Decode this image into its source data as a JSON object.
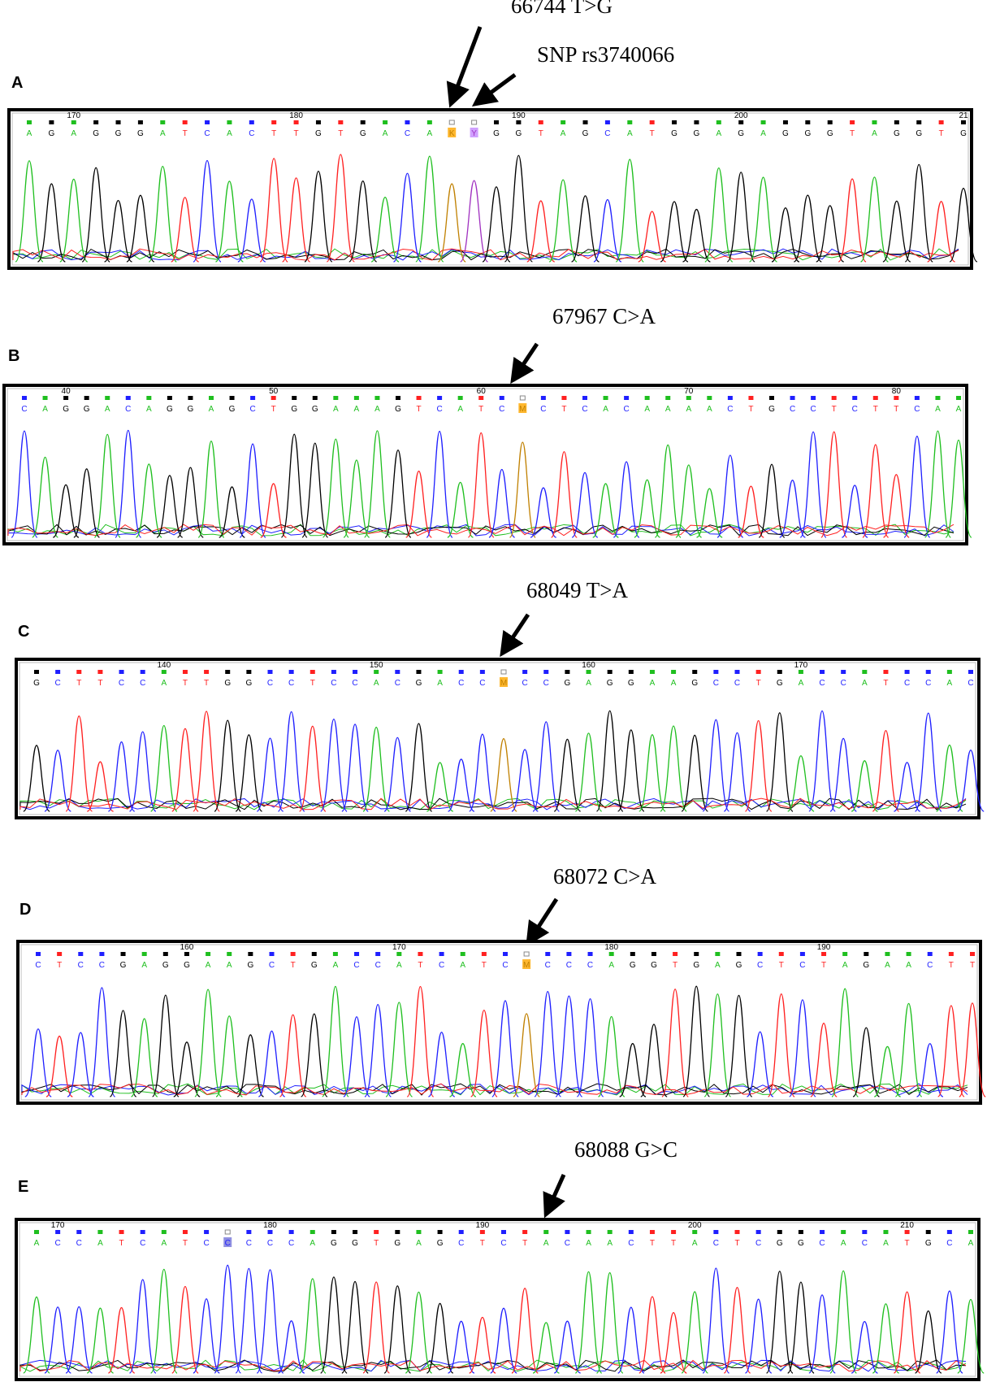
{
  "panels": [
    {
      "label": "A",
      "annotations": [
        "66744 T>G",
        "SNP rs3740066"
      ],
      "ticks": [
        "170",
        "180",
        "190",
        "200",
        "21"
      ],
      "bases": [
        "A",
        "G",
        "A",
        "G",
        "G",
        "G",
        "A",
        "T",
        "C",
        "A",
        "C",
        "T",
        "T",
        "G",
        "T",
        "G",
        "A",
        "C",
        "A",
        "K",
        "Y",
        "G",
        "G",
        "T",
        "A",
        "G",
        "C",
        "A",
        "T",
        "G",
        "G",
        "A",
        "G",
        "A",
        "G",
        "G",
        "G",
        "T",
        "A",
        "G",
        "G",
        "T",
        "G"
      ]
    },
    {
      "label": "B",
      "annotations": [
        "67967 C>A"
      ],
      "ticks": [
        "40",
        "50",
        "60",
        "70",
        "80"
      ],
      "bases": [
        "C",
        "A",
        "G",
        "G",
        "A",
        "C",
        "A",
        "G",
        "G",
        "A",
        "G",
        "C",
        "T",
        "G",
        "G",
        "A",
        "A",
        "A",
        "G",
        "T",
        "C",
        "A",
        "T",
        "C",
        "M",
        "C",
        "T",
        "C",
        "A",
        "C",
        "A",
        "A",
        "A",
        "A",
        "C",
        "T",
        "G",
        "C",
        "C",
        "T",
        "C",
        "T",
        "T",
        "C",
        "A",
        "A"
      ]
    },
    {
      "label": "C",
      "annotations": [
        "68049 T>A"
      ],
      "ticks": [
        "140",
        "150",
        "160",
        "170"
      ],
      "bases": [
        "G",
        "C",
        "T",
        "T",
        "C",
        "C",
        "A",
        "T",
        "T",
        "G",
        "G",
        "C",
        "C",
        "T",
        "C",
        "C",
        "A",
        "C",
        "G",
        "A",
        "C",
        "C",
        "M",
        "C",
        "C",
        "G",
        "A",
        "G",
        "G",
        "A",
        "A",
        "G",
        "C",
        "C",
        "T",
        "G",
        "A",
        "C",
        "C",
        "A",
        "T",
        "C",
        "C",
        "A",
        "C"
      ]
    },
    {
      "label": "D",
      "annotations": [
        "68072 C>A"
      ],
      "ticks": [
        "160",
        "170",
        "180",
        "190"
      ],
      "bases": [
        "C",
        "T",
        "C",
        "C",
        "G",
        "A",
        "G",
        "G",
        "A",
        "A",
        "G",
        "C",
        "T",
        "G",
        "A",
        "C",
        "C",
        "A",
        "T",
        "C",
        "A",
        "T",
        "C",
        "M",
        "C",
        "C",
        "C",
        "A",
        "G",
        "G",
        "T",
        "G",
        "A",
        "G",
        "C",
        "T",
        "C",
        "T",
        "A",
        "G",
        "A",
        "A",
        "C",
        "T",
        "T"
      ]
    },
    {
      "label": "E",
      "annotations": [
        "68088 G>C"
      ],
      "ticks": [
        "170",
        "180",
        "190",
        "200",
        "210"
      ],
      "bases": [
        "A",
        "C",
        "C",
        "A",
        "T",
        "C",
        "A",
        "T",
        "C",
        "C",
        "C",
        "C",
        "C",
        "A",
        "G",
        "G",
        "T",
        "G",
        "A",
        "G",
        "C",
        "T",
        "C",
        "T",
        "A",
        "C",
        "A",
        "A",
        "C",
        "T",
        "T",
        "A",
        "C",
        "T",
        "C",
        "G",
        "G",
        "C",
        "A",
        "C",
        "A",
        "T",
        "G",
        "C",
        "A"
      ]
    }
  ]
}
